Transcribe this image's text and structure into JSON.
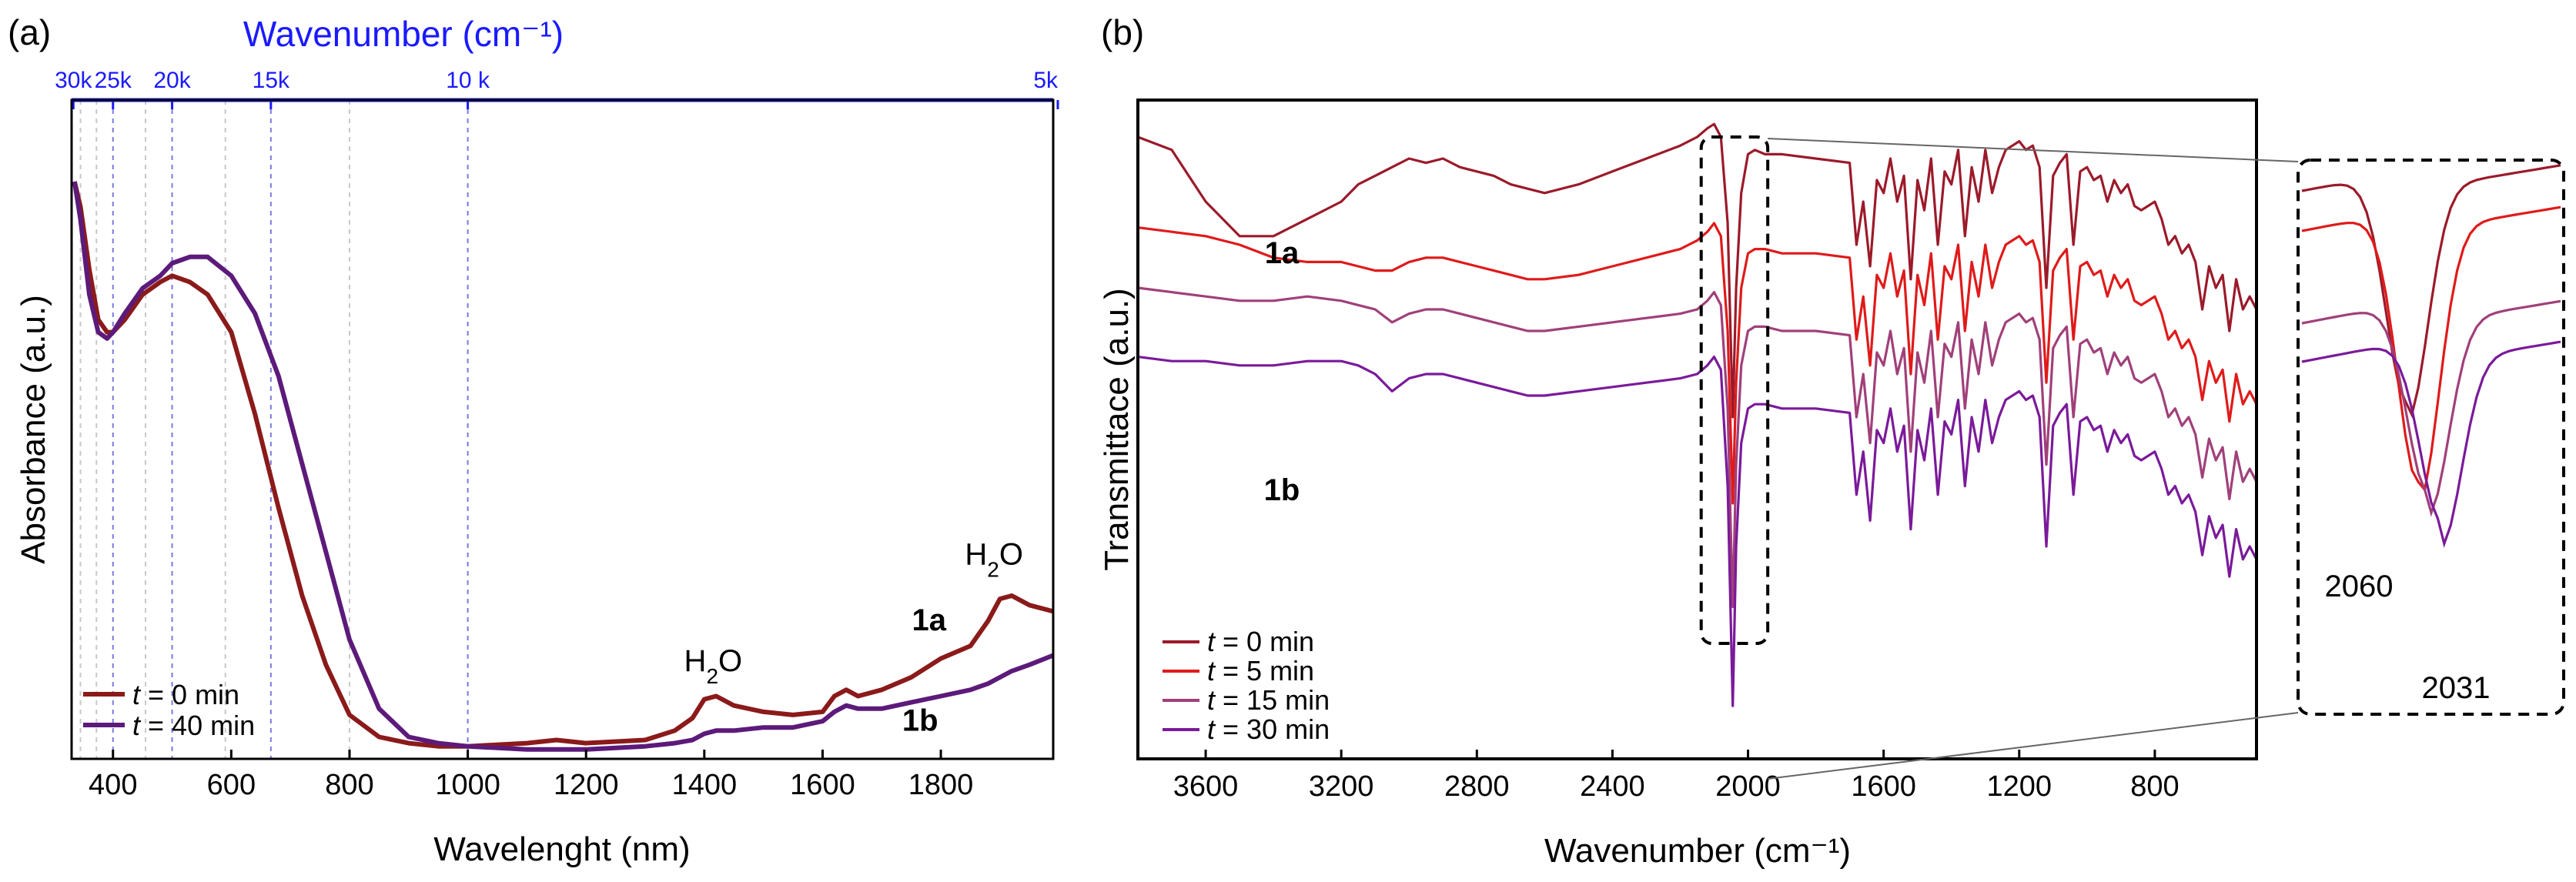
{
  "chart_data": [
    {
      "panel_label": "(a)",
      "type": "line",
      "xlabel": "Wavelenght (nm)",
      "ylabel": "Absorbance (a.u.)",
      "xlim": [
        330,
        1990
      ],
      "ylim": [
        0,
        1.05
      ],
      "x_ticks": [
        400,
        600,
        800,
        1000,
        1200,
        1400,
        1600,
        1800
      ],
      "top_axis": {
        "title": "Wavenumber (cm⁻¹)",
        "tick_labels": [
          "30k",
          "25k",
          "20k",
          "15k",
          "10 k",
          "5k"
        ],
        "tick_wavelengths_nm": [
          333,
          400,
          500,
          667,
          1000,
          2000
        ],
        "dashed_line_wavelengths_nm": [
          345,
          372,
          400,
          455,
          500,
          590,
          667,
          800,
          1000
        ]
      },
      "series": [
        {
          "name": "t = 0 min",
          "color": "#8b1a1a",
          "x": [
            335,
            345,
            360,
            375,
            390,
            400,
            420,
            450,
            480,
            500,
            530,
            560,
            600,
            640,
            680,
            720,
            760,
            800,
            850,
            900,
            950,
            1000,
            1100,
            1150,
            1200,
            1300,
            1350,
            1380,
            1400,
            1420,
            1450,
            1500,
            1550,
            1600,
            1620,
            1640,
            1660,
            1700,
            1750,
            1800,
            1850,
            1880,
            1900,
            1920,
            1950,
            1990
          ],
          "values": [
            0.92,
            0.88,
            0.78,
            0.7,
            0.68,
            0.68,
            0.7,
            0.74,
            0.76,
            0.77,
            0.76,
            0.74,
            0.68,
            0.55,
            0.4,
            0.26,
            0.15,
            0.07,
            0.035,
            0.025,
            0.02,
            0.02,
            0.025,
            0.03,
            0.025,
            0.03,
            0.045,
            0.065,
            0.095,
            0.1,
            0.085,
            0.075,
            0.07,
            0.075,
            0.1,
            0.11,
            0.1,
            0.11,
            0.13,
            0.16,
            0.18,
            0.22,
            0.255,
            0.26,
            0.245,
            0.235
          ]
        },
        {
          "name": "t = 40 min",
          "color": "#5c1a7a",
          "x": [
            335,
            345,
            360,
            375,
            390,
            400,
            420,
            450,
            480,
            500,
            530,
            560,
            600,
            640,
            680,
            720,
            760,
            800,
            850,
            900,
            950,
            1000,
            1100,
            1150,
            1200,
            1300,
            1350,
            1380,
            1400,
            1420,
            1450,
            1500,
            1550,
            1600,
            1620,
            1640,
            1660,
            1700,
            1750,
            1800,
            1850,
            1880,
            1900,
            1920,
            1950,
            1990
          ],
          "values": [
            0.92,
            0.86,
            0.74,
            0.68,
            0.67,
            0.68,
            0.71,
            0.75,
            0.77,
            0.79,
            0.8,
            0.8,
            0.77,
            0.71,
            0.61,
            0.47,
            0.33,
            0.19,
            0.08,
            0.035,
            0.025,
            0.02,
            0.015,
            0.015,
            0.015,
            0.02,
            0.025,
            0.03,
            0.04,
            0.045,
            0.045,
            0.05,
            0.05,
            0.06,
            0.075,
            0.085,
            0.08,
            0.08,
            0.09,
            0.1,
            0.11,
            0.12,
            0.13,
            0.14,
            0.15,
            0.165
          ]
        }
      ],
      "annotations": [
        {
          "text": "H₂O",
          "x": 1415,
          "y": 0.14
        },
        {
          "text": "H₂O",
          "x": 1890,
          "y": 0.31
        },
        {
          "text": "1a",
          "x": 1780,
          "y": 0.205,
          "bold": true
        },
        {
          "text": "1b",
          "x": 1765,
          "y": 0.045,
          "bold": true
        }
      ],
      "legend": [
        "t = 0 min",
        "t = 40 min"
      ]
    },
    {
      "panel_label": "(b)",
      "type": "line",
      "xlabel": "Wavenumber (cm⁻¹)",
      "ylabel": "Transmittace (a.u.)",
      "xlim": [
        3800,
        500
      ],
      "ylim": [
        0,
        100
      ],
      "x_ticks": [
        3600,
        3200,
        2800,
        2400,
        2000,
        1600,
        1200,
        800
      ],
      "series": [
        {
          "name": "t = 0 min",
          "color": "#9b1a2a",
          "offset": 0,
          "x": [
            3800,
            3700,
            3600,
            3500,
            3400,
            3300,
            3200,
            3150,
            3100,
            3050,
            3000,
            2950,
            2900,
            2850,
            2800,
            2750,
            2700,
            2650,
            2600,
            2500,
            2400,
            2300,
            2200,
            2150,
            2120,
            2100,
            2080,
            2060,
            2045,
            2035,
            2020,
            2000,
            1980,
            1950,
            1900,
            1800,
            1700,
            1680,
            1660,
            1640,
            1620,
            1600,
            1580,
            1560,
            1540,
            1520,
            1500,
            1480,
            1460,
            1440,
            1420,
            1400,
            1380,
            1360,
            1340,
            1320,
            1300,
            1280,
            1260,
            1240,
            1220,
            1200,
            1180,
            1160,
            1140,
            1120,
            1100,
            1080,
            1060,
            1040,
            1020,
            1000,
            980,
            960,
            940,
            920,
            900,
            880,
            860,
            840,
            820,
            800,
            780,
            760,
            740,
            720,
            700,
            680,
            660,
            640,
            620,
            600,
            580,
            560,
            540,
            520,
            500
          ],
          "values": [
            95,
            92,
            80,
            72,
            72,
            76,
            80,
            84,
            86,
            88,
            90,
            89,
            90,
            88,
            87,
            86,
            84,
            83,
            82,
            84,
            87,
            90,
            93,
            95,
            97,
            98,
            95,
            75,
            30,
            60,
            82,
            91,
            92,
            91,
            91,
            90,
            89,
            70,
            80,
            65,
            85,
            82,
            90,
            80,
            86,
            62,
            85,
            78,
            90,
            70,
            87,
            84,
            92,
            72,
            88,
            80,
            92,
            82,
            88,
            92,
            93,
            94,
            92,
            93,
            88,
            60,
            86,
            89,
            91,
            70,
            87,
            88,
            85,
            86,
            80,
            85,
            82,
            84,
            79,
            78,
            79,
            80,
            76,
            70,
            72,
            68,
            70,
            66,
            55,
            65,
            60,
            63,
            50,
            62,
            55,
            58,
            55
          ]
        },
        {
          "name": "t = 5 min",
          "color": "#e01a1a",
          "offset": -20,
          "x": [
            3800,
            3700,
            3600,
            3500,
            3400,
            3300,
            3200,
            3150,
            3100,
            3050,
            3000,
            2950,
            2900,
            2850,
            2800,
            2750,
            2700,
            2650,
            2600,
            2500,
            2400,
            2300,
            2200,
            2150,
            2120,
            2100,
            2080,
            2060,
            2045,
            2035,
            2020,
            2000,
            1980,
            1950,
            1900,
            1800,
            1700,
            1680,
            1660,
            1640,
            1620,
            1600,
            1580,
            1560,
            1540,
            1520,
            1500,
            1480,
            1460,
            1440,
            1420,
            1400,
            1380,
            1360,
            1340,
            1320,
            1300,
            1280,
            1260,
            1240,
            1220,
            1200,
            1180,
            1160,
            1140,
            1120,
            1100,
            1080,
            1060,
            1040,
            1020,
            1000,
            980,
            960,
            940,
            920,
            900,
            880,
            860,
            840,
            820,
            800,
            780,
            760,
            740,
            720,
            700,
            680,
            660,
            640,
            620,
            600,
            580,
            560,
            540,
            520,
            500
          ],
          "values": [
            94,
            93,
            92,
            90,
            87,
            86,
            86,
            85,
            84,
            84,
            86,
            87,
            87,
            86,
            85,
            84,
            83,
            82,
            82,
            83,
            85,
            87,
            89,
            91,
            93,
            95,
            92,
            70,
            30,
            58,
            80,
            88,
            89,
            89,
            88,
            88,
            87,
            68,
            78,
            62,
            83,
            80,
            88,
            78,
            84,
            60,
            83,
            76,
            88,
            68,
            85,
            82,
            90,
            70,
            86,
            78,
            90,
            80,
            86,
            90,
            91,
            92,
            90,
            91,
            86,
            58,
            84,
            87,
            89,
            68,
            85,
            86,
            83,
            84,
            78,
            83,
            80,
            82,
            77,
            76,
            77,
            78,
            74,
            68,
            70,
            66,
            68,
            64,
            54,
            63,
            58,
            61,
            49,
            60,
            53,
            56,
            53
          ]
        },
        {
          "name": "t = 15 min",
          "color": "#a0407a",
          "offset": -36,
          "x": [
            3800,
            3700,
            3600,
            3500,
            3400,
            3300,
            3200,
            3150,
            3100,
            3050,
            3000,
            2950,
            2900,
            2850,
            2800,
            2750,
            2700,
            2650,
            2600,
            2500,
            2400,
            2300,
            2200,
            2150,
            2120,
            2100,
            2080,
            2060,
            2045,
            2035,
            2020,
            2000,
            1980,
            1950,
            1900,
            1800,
            1700,
            1680,
            1660,
            1640,
            1620,
            1600,
            1580,
            1560,
            1540,
            1520,
            1500,
            1480,
            1460,
            1440,
            1420,
            1400,
            1380,
            1360,
            1340,
            1320,
            1300,
            1280,
            1260,
            1240,
            1220,
            1200,
            1180,
            1160,
            1140,
            1120,
            1100,
            1080,
            1060,
            1040,
            1020,
            1000,
            980,
            960,
            940,
            920,
            900,
            880,
            860,
            840,
            820,
            800,
            780,
            760,
            740,
            720,
            700,
            680,
            660,
            640,
            620,
            600,
            580,
            560,
            540,
            520,
            500
          ],
          "values": [
            96,
            95,
            94,
            93,
            93,
            94,
            93,
            92,
            91,
            88,
            90,
            91,
            91,
            90,
            89,
            88,
            87,
            86,
            86,
            87,
            88,
            89,
            90,
            91,
            93,
            95,
            92,
            68,
            22,
            55,
            78,
            86,
            87,
            87,
            86,
            86,
            85,
            66,
            76,
            60,
            81,
            78,
            86,
            76,
            82,
            58,
            81,
            74,
            86,
            66,
            83,
            80,
            88,
            68,
            84,
            76,
            88,
            78,
            84,
            88,
            89,
            90,
            88,
            89,
            84,
            55,
            82,
            85,
            87,
            66,
            83,
            84,
            81,
            82,
            76,
            81,
            78,
            80,
            75,
            74,
            75,
            76,
            72,
            66,
            68,
            64,
            66,
            62,
            52,
            61,
            56,
            59,
            47,
            58,
            51,
            54,
            51
          ]
        },
        {
          "name": "t = 30 min",
          "color": "#7a1a9a",
          "offset": -52,
          "x": [
            3800,
            3700,
            3600,
            3500,
            3400,
            3300,
            3200,
            3150,
            3100,
            3050,
            3000,
            2950,
            2900,
            2850,
            2800,
            2750,
            2700,
            2650,
            2600,
            2500,
            2400,
            2300,
            2200,
            2150,
            2120,
            2100,
            2080,
            2060,
            2045,
            2035,
            2020,
            2000,
            1980,
            1950,
            1900,
            1800,
            1700,
            1680,
            1660,
            1640,
            1620,
            1600,
            1580,
            1560,
            1540,
            1520,
            1500,
            1480,
            1460,
            1440,
            1420,
            1400,
            1380,
            1360,
            1340,
            1320,
            1300,
            1280,
            1260,
            1240,
            1220,
            1200,
            1180,
            1160,
            1140,
            1120,
            1100,
            1080,
            1060,
            1040,
            1020,
            1000,
            980,
            960,
            940,
            920,
            900,
            880,
            860,
            840,
            820,
            800,
            780,
            760,
            740,
            720,
            700,
            680,
            660,
            640,
            620,
            600,
            580,
            560,
            540,
            520,
            500
          ],
          "values": [
            96,
            95,
            95,
            94,
            94,
            95,
            95,
            94,
            92,
            88,
            91,
            92,
            92,
            91,
            90,
            89,
            88,
            87,
            87,
            88,
            89,
            90,
            91,
            92,
            94,
            96,
            93,
            66,
            15,
            52,
            76,
            84,
            85,
            85,
            84,
            84,
            83,
            64,
            74,
            58,
            79,
            76,
            84,
            74,
            80,
            56,
            79,
            72,
            84,
            64,
            81,
            78,
            86,
            66,
            82,
            74,
            86,
            76,
            82,
            86,
            87,
            88,
            86,
            87,
            82,
            52,
            80,
            83,
            85,
            64,
            81,
            82,
            79,
            80,
            74,
            79,
            76,
            78,
            73,
            72,
            73,
            74,
            70,
            64,
            66,
            62,
            64,
            60,
            50,
            59,
            54,
            57,
            45,
            56,
            49,
            52,
            49
          ]
        }
      ],
      "annotations": [
        {
          "text": "1a",
          "bold": true
        },
        {
          "text": "1b",
          "bold": true
        }
      ],
      "inset": {
        "x_range": [
          2120,
          1960
        ],
        "labels": [
          {
            "text": "2060"
          },
          {
            "text": "2031"
          }
        ]
      },
      "legend": [
        "t = 0 min",
        "t = 5 min",
        "t = 15 min",
        "t = 30 min"
      ]
    }
  ]
}
